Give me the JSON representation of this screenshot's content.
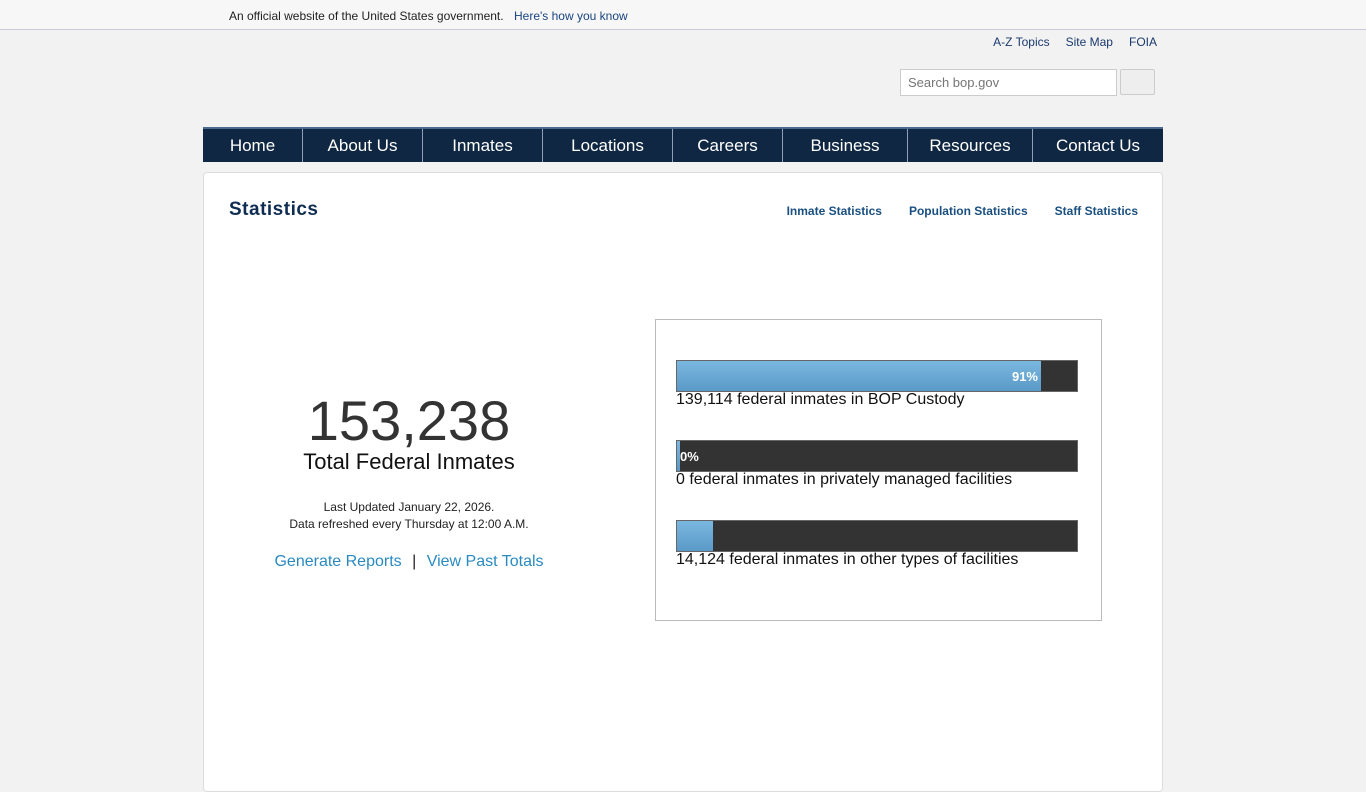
{
  "banner": {
    "text": "An official website of the United States government.",
    "how": "Here's how you know"
  },
  "toplinks": [
    "A-Z Topics",
    "Site Map",
    "FOIA"
  ],
  "search": {
    "placeholder": "Search bop.gov",
    "value": ""
  },
  "nav": [
    "Home",
    "About Us",
    "Inmates",
    "Locations",
    "Careers",
    "Business",
    "Resources",
    "Contact Us"
  ],
  "page": {
    "title": "Statistics",
    "sublinks": [
      "Inmate Statistics",
      "Population Statistics",
      "Staff Statistics"
    ]
  },
  "summary": {
    "total": "153,238",
    "label": "Total Federal Inmates",
    "updated": "Last Updated January 22, 2026.",
    "refresh": "Data refreshed every Thursday at 12:00 A.M.",
    "generate": "Generate Reports",
    "sep": "|",
    "past": "View Past Totals"
  },
  "bars": [
    {
      "percent": 91,
      "label": "91%",
      "caption": "139,114 federal inmates in BOP Custody"
    },
    {
      "percent": 0,
      "label": "0%",
      "caption": "0 federal inmates in privately managed facilities"
    },
    {
      "percent": 9,
      "label": "",
      "caption": "14,124 federal inmates in other types of facilities"
    }
  ],
  "colors": {
    "nav": "#0f2742",
    "fill": "#6aa8d4",
    "track": "#333333",
    "link": "#2a8ac0"
  }
}
